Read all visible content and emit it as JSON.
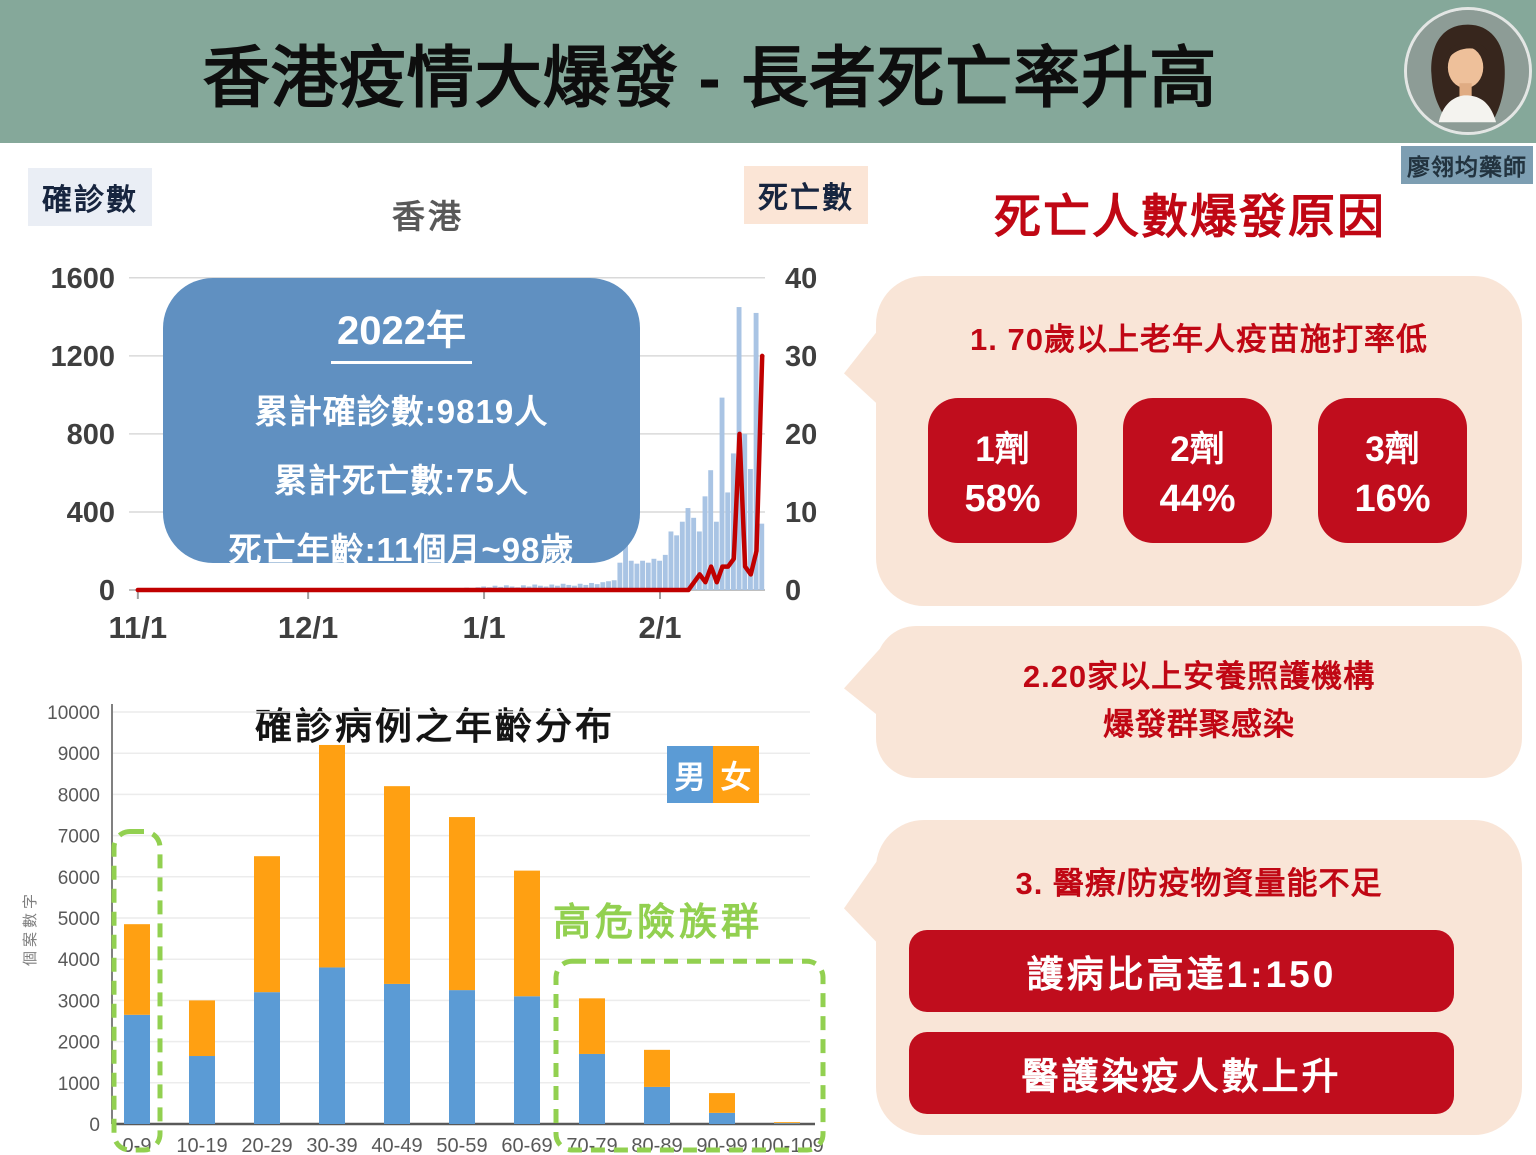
{
  "header": {
    "title": "香港疫情大爆發 - 長者死亡率升高",
    "author": "廖翎均藥師"
  },
  "colors": {
    "header_teal": "#85a89a",
    "accent_red_text": "#c00714",
    "accent_red_box": "#c00d1d",
    "bubble_peach": "#f9e5d7",
    "info_box_blue": "#6090c1",
    "case_bar_blue": "#a9c4e4",
    "death_line_red": "#c00000",
    "male_blue": "#5b9bd5",
    "female_orange": "#ffa012",
    "highlight_green": "#92d050",
    "badge_confirmed_bg": "#eaeef5",
    "badge_deaths_bg": "#fbe5d6"
  },
  "right": {
    "heading": "死亡人數爆發原因",
    "bubble1": {
      "heading": "1. 70歲以上老年人疫苗施打率低",
      "doses": [
        {
          "label": "1劑",
          "value": "58%"
        },
        {
          "label": "2劑",
          "value": "44%"
        },
        {
          "label": "3劑",
          "value": "16%"
        }
      ]
    },
    "bubble2": {
      "lines": [
        "2.20家以上安養照護機構",
        "爆發群聚感染"
      ]
    },
    "bubble3": {
      "heading": "3. 醫療/防疫物資量能不足",
      "items": [
        "護病比高達1:150",
        "醫護染疫人數上升"
      ]
    }
  },
  "chart_data": [
    {
      "type": "bar+line",
      "title": "香港",
      "x_tick_labels": [
        "11/1",
        "12/1",
        "1/1",
        "2/1"
      ],
      "x_tick_days": [
        0,
        30,
        61,
        92
      ],
      "left_axis": {
        "label": "確診數",
        "ticks": [
          0,
          400,
          800,
          1200,
          1600
        ],
        "max": 1640
      },
      "right_axis": {
        "label": "死亡數",
        "ticks": [
          0,
          10,
          20,
          30,
          40
        ],
        "max": 41
      },
      "annotation": {
        "year": "2022年",
        "lines": [
          "累計確診數:9819人",
          "累計死亡數:75人",
          "死亡年齡:11個月~98歲"
        ]
      },
      "series": [
        {
          "name": "確診數",
          "type": "bar",
          "axis": "left",
          "color": "#a9c4e4",
          "values": [
            0,
            0,
            0,
            0,
            0,
            0,
            0,
            0,
            0,
            0,
            0,
            0,
            0,
            0,
            0,
            0,
            0,
            0,
            0,
            0,
            0,
            0,
            0,
            0,
            0,
            0,
            0,
            0,
            0,
            0,
            0,
            0,
            0,
            0,
            0,
            0,
            0,
            0,
            0,
            0,
            0,
            0,
            0,
            0,
            0,
            0,
            0,
            0,
            0,
            0,
            0,
            0,
            0,
            5,
            0,
            8,
            6,
            10,
            12,
            8,
            14,
            18,
            14,
            22,
            16,
            24,
            18,
            14,
            24,
            18,
            28,
            22,
            18,
            28,
            22,
            32,
            26,
            22,
            32,
            26,
            36,
            30,
            40,
            45,
            50,
            140,
            250,
            150,
            135,
            150,
            140,
            160,
            150,
            180,
            300,
            280,
            350,
            420,
            370,
            300,
            480,
            614,
            350,
            986,
            500,
            700,
            1450,
            800,
            620,
            1420,
            340
          ]
        },
        {
          "name": "死亡數",
          "type": "line",
          "axis": "right",
          "color": "#c00000",
          "values": [
            0,
            0,
            0,
            0,
            0,
            0,
            0,
            0,
            0,
            0,
            0,
            0,
            0,
            0,
            0,
            0,
            0,
            0,
            0,
            0,
            0,
            0,
            0,
            0,
            0,
            0,
            0,
            0,
            0,
            0,
            0,
            0,
            0,
            0,
            0,
            0,
            0,
            0,
            0,
            0,
            0,
            0,
            0,
            0,
            0,
            0,
            0,
            0,
            0,
            0,
            0,
            0,
            0,
            0,
            0,
            0,
            0,
            0,
            0,
            0,
            0,
            0,
            0,
            0,
            0,
            0,
            0,
            0,
            0,
            0,
            0,
            0,
            0,
            0,
            0,
            0,
            0,
            0,
            0,
            0,
            0,
            0,
            0,
            0,
            0,
            0,
            0,
            0,
            0,
            0,
            0,
            0,
            0,
            0,
            0,
            0,
            0,
            0,
            1,
            2,
            1,
            3,
            1,
            3,
            3,
            4,
            20,
            3,
            2,
            5,
            30
          ]
        }
      ]
    },
    {
      "type": "stacked_bar",
      "title": "確診病例之年齡分布",
      "ylabel": "個案數字",
      "categories": [
        "0-9",
        "10-19",
        "20-29",
        "30-39",
        "40-49",
        "50-59",
        "60-69",
        "70-79",
        "80-89",
        "90-99",
        "100-109"
      ],
      "series": [
        {
          "name": "男",
          "color": "#5b9bd5",
          "values": [
            2650,
            1650,
            3200,
            3800,
            3400,
            3250,
            3100,
            1700,
            900,
            270,
            20
          ]
        },
        {
          "name": "女",
          "color": "#ffa012",
          "values": [
            2200,
            1350,
            3300,
            5400,
            4800,
            4200,
            3050,
            1350,
            900,
            480,
            25
          ]
        }
      ],
      "ylim": [
        0,
        10000
      ],
      "ytick_step": 1000,
      "highlight": {
        "label": "高危險族群",
        "color": "#92d050",
        "boxes": [
          {
            "from": "0-9",
            "to": "0-9",
            "top_value": 7100
          },
          {
            "from": "70-79",
            "to": "100-109",
            "top_value": 3950
          }
        ]
      }
    }
  ]
}
